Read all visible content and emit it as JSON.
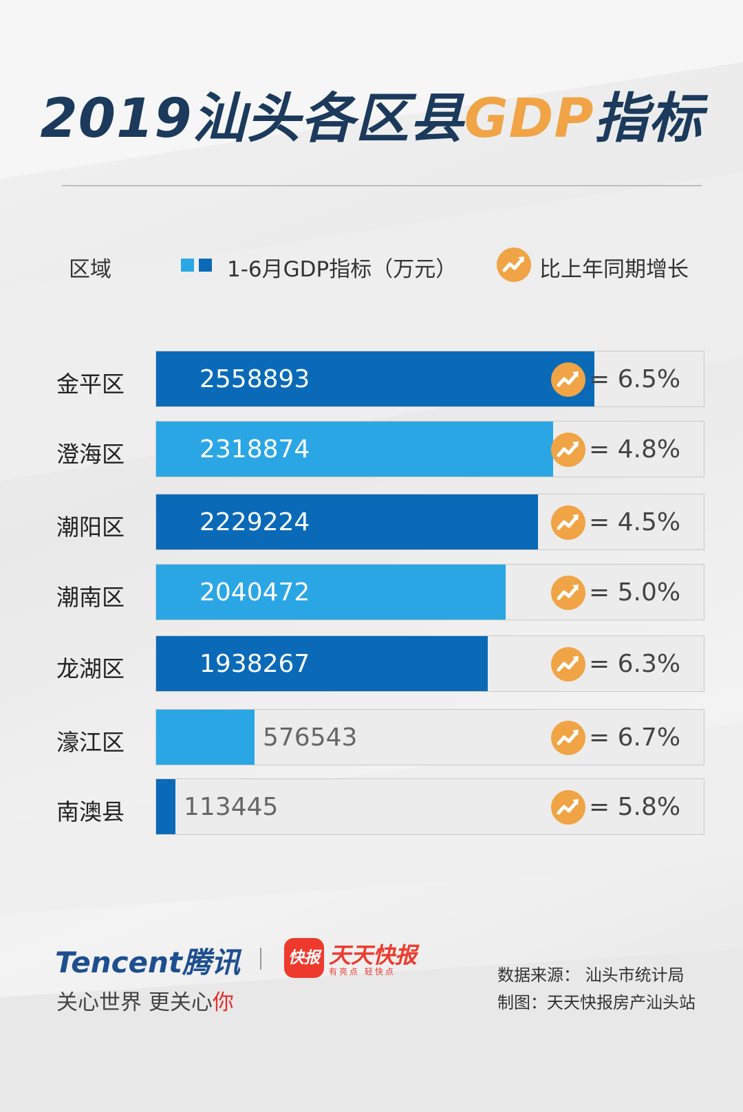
{
  "title": {
    "main": "2019汕头各区县",
    "accent": "GDP",
    "tail": "指标"
  },
  "legend": {
    "region_label": "区域",
    "gdp_label": "1-6月GDP指标（万元）",
    "growth_label": "比上年同期增长"
  },
  "colors": {
    "dark_bar": "#0a6ab8",
    "light_bar": "#2ba6e4",
    "track": "#ececec",
    "accent": "#f0a445",
    "title": "#1b3a5c"
  },
  "chart_data": {
    "type": "bar",
    "orientation": "horizontal",
    "series": [
      {
        "name": "1-6月GDP指标（万元）",
        "values": [
          2558893,
          2318874,
          2229224,
          2040472,
          1938267,
          576543,
          113445
        ]
      },
      {
        "name": "比上年同期增长",
        "values": [
          "= 6.5%",
          "= 4.8%",
          "= 4.5%",
          "= 5.0%",
          "= 6.3%",
          "= 6.7%",
          "= 5.8%"
        ]
      }
    ],
    "categories": [
      "金平区",
      "澄海区",
      "潮阳区",
      "潮南区",
      "龙湖区",
      "濠江区",
      "南澳县"
    ],
    "xlim": [
      0,
      3200000
    ]
  },
  "footer": {
    "tencent_logo": "Tencent腾讯",
    "slogan_main": "关心世界 更关心",
    "slogan_red": "你",
    "kb_badge": "快报",
    "kb_name": "天天快报",
    "kb_slogan": "有亮点 轻快点",
    "source": "数据来源：  汕头市统计局",
    "credit": "制图：天天快报房产汕头站"
  }
}
